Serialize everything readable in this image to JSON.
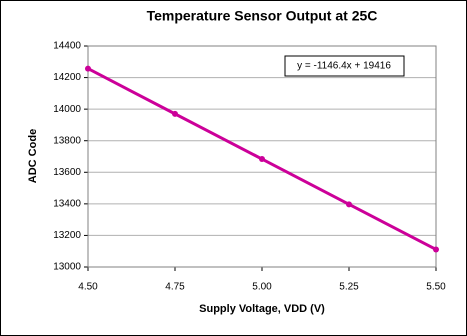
{
  "chart_data": {
    "type": "line",
    "title": "Temperature Sensor Output at 25C",
    "x_label": "Supply Voltage, VDD (V)",
    "y_label": "ADC Code",
    "annotation": "y = -1146.4x + 19416",
    "x": [
      4.5,
      4.75,
      5.0,
      5.25,
      5.5
    ],
    "series": [
      {
        "name": "ADC Code",
        "color": "#cc0099",
        "values": [
          14257,
          13970,
          13684,
          13397,
          13111
        ]
      }
    ],
    "xlim": [
      4.5,
      5.5
    ],
    "xticks": [
      {
        "value": 4.5,
        "label": "4.50"
      },
      {
        "value": 4.75,
        "label": "4.75"
      },
      {
        "value": 5.0,
        "label": "5.00"
      },
      {
        "value": 5.25,
        "label": "5.25"
      },
      {
        "value": 5.5,
        "label": "5.50"
      }
    ],
    "ylim": [
      13000,
      14400
    ],
    "yticks": [
      13000,
      13200,
      13400,
      13600,
      13800,
      14000,
      14200,
      14400
    ],
    "grid": true
  }
}
